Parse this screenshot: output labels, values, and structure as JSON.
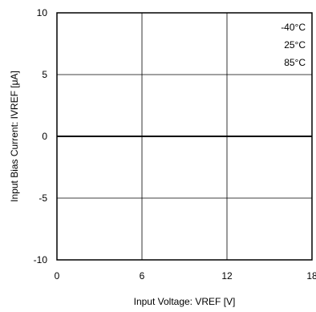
{
  "chart_data": {
    "type": "line",
    "xlabel": "Input Voltage: VREF [V]",
    "ylabel": "Input Bias Current: IVREF [μA]",
    "xlim": [
      0,
      18
    ],
    "ylim": [
      -10,
      10
    ],
    "x_ticks": [
      "0",
      "6",
      "12",
      "18"
    ],
    "y_ticks": [
      "10",
      "5",
      "0",
      "-5",
      "-10"
    ],
    "grid": true,
    "legend_position": "top-right",
    "series": [
      {
        "name": "-40°C",
        "x": [
          0,
          18
        ],
        "y": [
          0,
          0
        ],
        "color": "#000000"
      },
      {
        "name": "25°C",
        "x": [
          0,
          18
        ],
        "y": [
          0,
          0
        ],
        "color": "#000000"
      },
      {
        "name": "85°C",
        "x": [
          0,
          18
        ],
        "y": [
          0,
          0
        ],
        "color": "#000000"
      }
    ]
  }
}
